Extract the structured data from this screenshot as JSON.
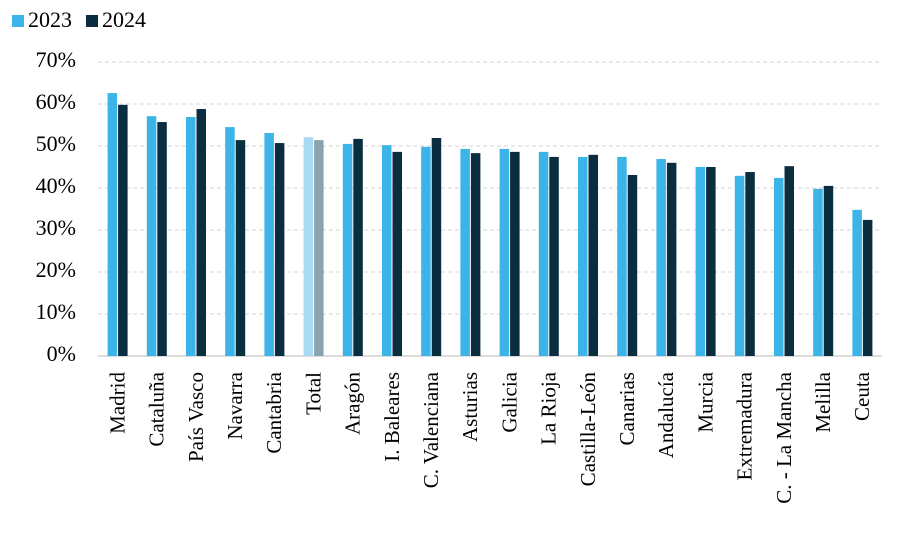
{
  "chart_data": {
    "type": "bar",
    "categories": [
      "Madrid",
      "Cataluña",
      "País Vasco",
      "Navarra",
      "Cantabria",
      "Total",
      "Aragón",
      "I. Baleares",
      "C. Valenciana",
      "Asturias",
      "Galicia",
      "La Rioja",
      "Castilla-León",
      "Canarias",
      "Andalucía",
      "Murcia",
      "Extremadura",
      "C. - La Mancha",
      "Melilla",
      "Ceuta"
    ],
    "series": [
      {
        "name": "2023",
        "color": "#3cb4e8",
        "colors": [
          "#3cb4e8",
          "#3cb4e8",
          "#3cb4e8",
          "#3cb4e8",
          "#3cb4e8",
          "#a8daf3",
          "#3cb4e8",
          "#3cb4e8",
          "#3cb4e8",
          "#3cb4e8",
          "#3cb4e8",
          "#3cb4e8",
          "#3cb4e8",
          "#3cb4e8",
          "#3cb4e8",
          "#3cb4e8",
          "#3cb4e8",
          "#3cb4e8",
          "#3cb4e8",
          "#3cb4e8"
        ],
        "values": [
          62.6,
          57.1,
          56.9,
          54.5,
          53.1,
          52.1,
          50.5,
          50.2,
          49.8,
          49.3,
          49.3,
          48.6,
          47.4,
          47.4,
          46.9,
          45.0,
          42.9,
          42.4,
          39.8,
          34.8
        ]
      },
      {
        "name": "2024",
        "color": "#0b2d40",
        "colors": [
          "#0b2d40",
          "#0b2d40",
          "#0b2d40",
          "#0b2d40",
          "#0b2d40",
          "#8ba2af",
          "#0b2d40",
          "#0b2d40",
          "#0b2d40",
          "#0b2d40",
          "#0b2d40",
          "#0b2d40",
          "#0b2d40",
          "#0b2d40",
          "#0b2d40",
          "#0b2d40",
          "#0b2d40",
          "#0b2d40",
          "#0b2d40",
          "#0b2d40"
        ],
        "values": [
          59.8,
          55.7,
          58.8,
          51.4,
          50.7,
          51.4,
          51.7,
          48.6,
          51.9,
          48.3,
          48.6,
          47.4,
          47.9,
          43.1,
          46.0,
          45.0,
          43.8,
          45.2,
          40.5,
          32.4
        ]
      }
    ],
    "ylim": [
      0,
      70
    ],
    "yticks": [
      {
        "value": 0,
        "label": "0%"
      },
      {
        "value": 10,
        "label": "10%"
      },
      {
        "value": 20,
        "label": "20%"
      },
      {
        "value": 30,
        "label": "30%"
      },
      {
        "value": 40,
        "label": "40%"
      },
      {
        "value": 50,
        "label": "50%"
      },
      {
        "value": 60,
        "label": "60%"
      },
      {
        "value": 70,
        "label": "70%"
      }
    ],
    "grid": true,
    "legend": "top-left"
  }
}
